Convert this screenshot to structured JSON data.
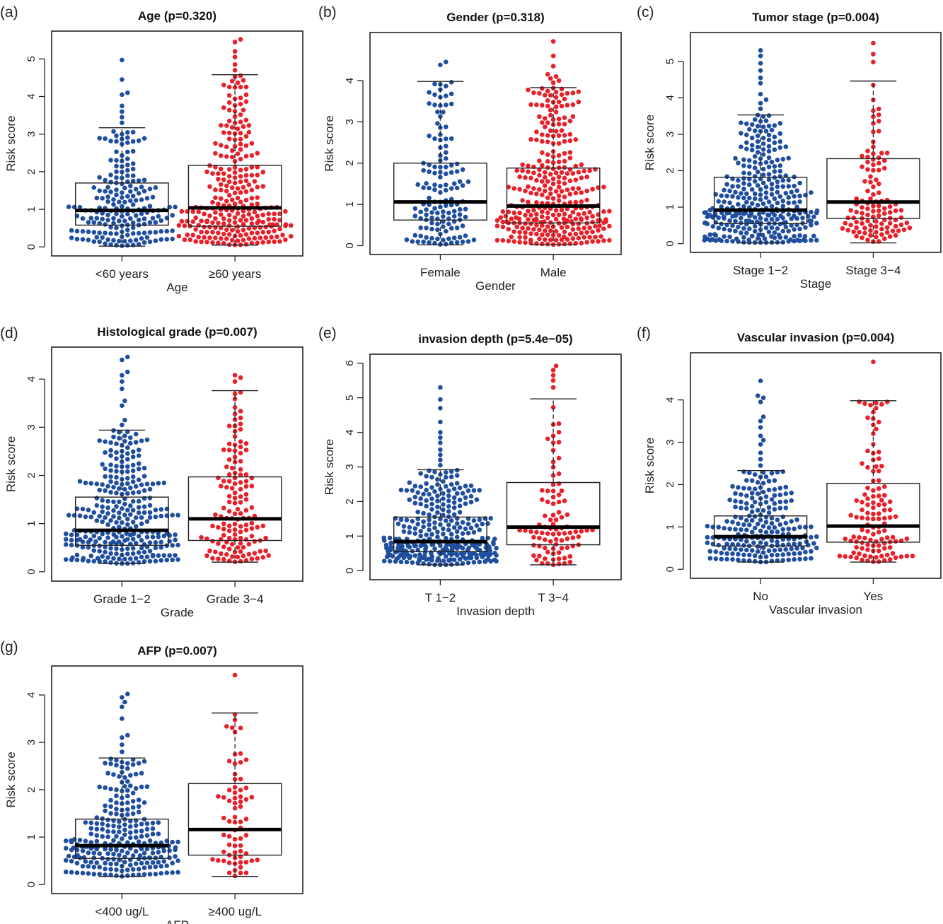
{
  "colors": {
    "group1": "#1f4e9e",
    "group2": "#e8202a"
  },
  "chart_data": [
    {
      "panel_label": "(a)",
      "type": "box",
      "title": "Age (p=0.320)",
      "xlabel": "Age",
      "ylabel": "Risk score",
      "ylim": [
        0,
        5.5
      ],
      "yticks": [
        "0",
        "1",
        "2",
        "3",
        "4",
        "5"
      ],
      "categories": [
        "<60 years",
        "≥60 years"
      ],
      "boxes": [
        {
          "min": 0.02,
          "q1": 0.58,
          "median": 0.97,
          "q3": 1.7,
          "max": 3.17,
          "n": 200,
          "outliers": [
            3.3,
            3.45,
            3.6,
            3.75,
            4.05,
            4.1,
            4.45,
            4.97
          ]
        },
        {
          "min": 0.05,
          "q1": 0.55,
          "median": 1.04,
          "q3": 2.17,
          "max": 4.58,
          "n": 270,
          "outliers": [
            4.7,
            4.85,
            5.05,
            5.2,
            5.45,
            5.52
          ]
        }
      ]
    },
    {
      "panel_label": "(b)",
      "type": "box",
      "title": "Gender (p=0.318)",
      "xlabel": "Gender",
      "ylabel": "Risk score",
      "ylim": [
        0,
        4.95
      ],
      "yticks": [
        "0",
        "1",
        "2",
        "3",
        "4"
      ],
      "categories": [
        "Female",
        "Male"
      ],
      "boxes": [
        {
          "min": 0.02,
          "q1": 0.62,
          "median": 1.06,
          "q3": 2.0,
          "max": 3.98,
          "n": 140,
          "outliers": [
            4.38,
            4.45
          ]
        },
        {
          "min": 0.02,
          "q1": 0.55,
          "median": 0.96,
          "q3": 1.88,
          "max": 3.83,
          "n": 330,
          "outliers": [
            3.95,
            4.0,
            4.05,
            4.1,
            4.15,
            4.35,
            4.6,
            4.95
          ]
        }
      ]
    },
    {
      "panel_label": "(c)",
      "type": "box",
      "title": "Tumor stage (p=0.004)",
      "xlabel": "Stage",
      "ylabel": "Risk score",
      "ylim": [
        0,
        5.55
      ],
      "yticks": [
        "0",
        "1",
        "2",
        "3",
        "4",
        "5"
      ],
      "categories": [
        "Stage 1−2",
        "Stage 3−4"
      ],
      "boxes": [
        {
          "min": 0.02,
          "q1": 0.55,
          "median": 0.92,
          "q3": 1.82,
          "max": 3.53,
          "n": 340,
          "outliers": [
            3.7,
            3.85,
            3.95,
            4.1,
            4.4,
            4.55,
            4.75,
            4.95,
            5.15,
            5.3
          ]
        },
        {
          "min": 0.02,
          "q1": 0.69,
          "median": 1.14,
          "q3": 2.33,
          "max": 4.46,
          "n": 115,
          "outliers": [
            4.98,
            5.2,
            5.5
          ]
        }
      ]
    },
    {
      "panel_label": "(d)",
      "type": "box",
      "title": "Histological grade (p=0.007)",
      "xlabel": "Grade",
      "ylabel": "Risk score",
      "ylim": [
        0,
        4.47
      ],
      "yticks": [
        "0",
        "1",
        "2",
        "3",
        "4"
      ],
      "categories": [
        "Grade 1−2",
        "Grade 3−4"
      ],
      "boxes": [
        {
          "min": 0.17,
          "q1": 0.55,
          "median": 0.86,
          "q3": 1.55,
          "max": 2.94,
          "n": 300,
          "outliers": [
            3.05,
            3.15,
            3.45,
            3.55,
            3.8,
            3.95,
            4.08,
            4.15,
            4.4,
            4.46
          ]
        },
        {
          "min": 0.2,
          "q1": 0.65,
          "median": 1.1,
          "q3": 1.97,
          "max": 3.76,
          "n": 140,
          "outliers": [
            3.95,
            4.03,
            4.08
          ]
        }
      ]
    },
    {
      "panel_label": "(e)",
      "type": "box",
      "title": "invasion depth (p=5.4e−05)",
      "xlabel": "Invasion depth",
      "ylabel": "Risk score",
      "ylim": [
        0,
        6.0
      ],
      "yticks": [
        "0",
        "1",
        "2",
        "3",
        "4",
        "5",
        "6"
      ],
      "categories": [
        "T 1−2",
        "T 3−4"
      ],
      "boxes": [
        {
          "min": 0.17,
          "q1": 0.55,
          "median": 0.84,
          "q3": 1.55,
          "max": 2.92,
          "n": 350,
          "outliers": [
            3.05,
            3.2,
            3.35,
            3.5,
            3.7,
            3.85,
            4.0,
            4.3,
            4.7,
            4.95,
            5.3
          ]
        },
        {
          "min": 0.17,
          "q1": 0.75,
          "median": 1.26,
          "q3": 2.55,
          "max": 4.97,
          "n": 95,
          "outliers": [
            5.3,
            5.5,
            5.65,
            5.8,
            5.92
          ]
        }
      ]
    },
    {
      "panel_label": "(f)",
      "type": "box",
      "title": "Vascular invasion (p=0.004)",
      "xlabel": "Vascular invasion",
      "ylabel": "Risk score",
      "ylim": [
        0,
        4.9
      ],
      "yticks": [
        "0",
        "1",
        "2",
        "3",
        "4"
      ],
      "categories": [
        "No",
        "Yes"
      ],
      "boxes": [
        {
          "min": 0.17,
          "q1": 0.55,
          "median": 0.77,
          "q3": 1.26,
          "max": 2.33,
          "n": 230,
          "outliers": [
            2.45,
            2.6,
            2.75,
            2.95,
            3.05,
            3.15,
            3.35,
            3.5,
            3.6,
            3.95,
            4.05,
            4.1,
            4.45
          ]
        },
        {
          "min": 0.17,
          "q1": 0.64,
          "median": 1.02,
          "q3": 2.03,
          "max": 3.98,
          "n": 120,
          "outliers": [
            4.9
          ]
        }
      ]
    },
    {
      "panel_label": "(g)",
      "type": "box",
      "title": "AFP (p=0.007)",
      "xlabel": "AFP",
      "ylabel": "Risk score",
      "ylim": [
        0,
        4.42
      ],
      "yticks": [
        "0",
        "1",
        "2",
        "3",
        "4"
      ],
      "categories": [
        "<400 ug/L",
        "≥400 ug/L"
      ],
      "boxes": [
        {
          "min": 0.17,
          "q1": 0.55,
          "median": 0.82,
          "q3": 1.38,
          "max": 2.67,
          "n": 260,
          "outliers": [
            2.8,
            2.95,
            3.1,
            3.15,
            3.5,
            3.75,
            3.85,
            3.95,
            4.02
          ]
        },
        {
          "min": 0.17,
          "q1": 0.62,
          "median": 1.16,
          "q3": 2.13,
          "max": 3.62,
          "n": 70,
          "outliers": [
            4.42
          ]
        }
      ]
    }
  ]
}
